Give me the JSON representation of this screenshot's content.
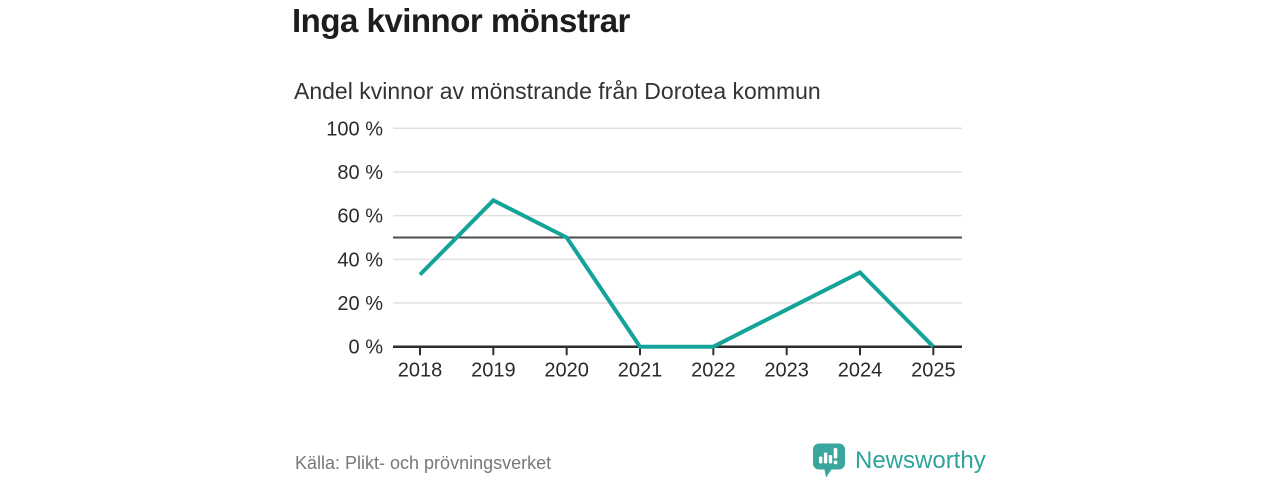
{
  "title": "Inga kvinnor mönstrar",
  "subtitle": "Andel kvinnor av mönstrande från Dorotea kommun",
  "footer": {
    "source": "Källa: Plikt- och prövningsverket",
    "brand": "Newsworthy"
  },
  "colors": {
    "line": "#13a398",
    "axis": "#2e2e2e",
    "grid": "#e0e0e0",
    "reference_line": "#4d4d4d",
    "title_text": "#1d1d1b",
    "source_text": "#75787c",
    "brand_teal": "#3aa79e"
  },
  "chart_data": {
    "type": "line",
    "title": "Inga kvinnor mönstrar",
    "subtitle": "Andel kvinnor av mönstrande från Dorotea kommun",
    "categories": [
      "2018",
      "2019",
      "2020",
      "2021",
      "2022",
      "2023",
      "2024",
      "2025"
    ],
    "series": [
      {
        "name": "Andel kvinnor av mönstrande",
        "values": [
          33,
          67,
          50,
          0,
          0,
          17,
          34,
          0
        ]
      }
    ],
    "unit": "%",
    "ylim": [
      0,
      100
    ],
    "yticks": [
      100,
      80,
      60,
      40,
      20,
      0
    ],
    "ytick_labels": [
      "100 %",
      "80 %",
      "60 %",
      "40 %",
      "20 %",
      "0 %"
    ],
    "reference_line": 50,
    "grid": true,
    "legend": false,
    "line_color": "#13a398",
    "source": "Källa: Plikt- och prövningsverket"
  }
}
